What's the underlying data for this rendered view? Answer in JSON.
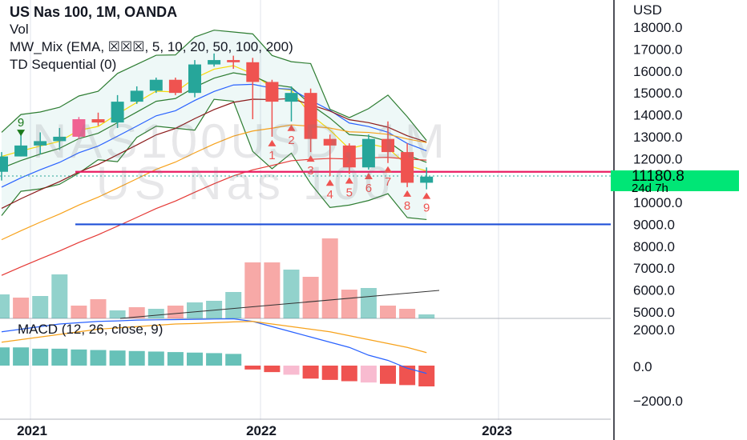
{
  "legend": {
    "title": "US Nas 100, 1M, OANDA",
    "vol": "Vol",
    "mw_mix": "MW_Mix (EMA, ☒☒☒, 5, 10, 20, 50, 100, 200)",
    "td": "TD Sequential (0)"
  },
  "macd_label": "MACD (12, 26, close, 9)",
  "watermark": {
    "line1": "NAS100USD, 1M",
    "line2": "US Nas 100"
  },
  "price_tag": {
    "price": "11180.8",
    "countdown": "24d 7h",
    "color": "#00e676"
  },
  "colors": {
    "up": "#26a69a",
    "down": "#ef5350",
    "bb": "#2e7d32",
    "ema_yellow": "#f5d90a",
    "ema_orange": "#f7a21b",
    "ema_red": "#e53935",
    "ema_darkred": "#8b1a1a",
    "ema_blue": "#2962ff",
    "level_red": "#e91e63",
    "level_blue": "#1e4fd8"
  },
  "chart_data": {
    "type": "candlestick",
    "y_axis": {
      "unit": "USD",
      "ticks": [
        "18000.0",
        "17000.0",
        "16000.0",
        "15000.0",
        "14000.0",
        "13000.0",
        "12000.0",
        "11000.0",
        "10000.0",
        "9000.0",
        "8000.0",
        "7000.0",
        "6000.0",
        "5000.0"
      ],
      "range": [
        4700,
        18300
      ]
    },
    "macd_axis": {
      "ticks": [
        "2000.0",
        "0.0",
        "−2000.0"
      ]
    },
    "x_axis": {
      "ticks": [
        "2021",
        "2022",
        "2023"
      ]
    },
    "candles": [
      {
        "o": 11400,
        "h": 12300,
        "l": 11000,
        "c": 12100
      },
      {
        "o": 12100,
        "h": 13100,
        "l": 12100,
        "c": 12600,
        "td": "9",
        "td_color": "green"
      },
      {
        "o": 12600,
        "h": 13200,
        "l": 12200,
        "c": 12800
      },
      {
        "o": 12800,
        "h": 13400,
        "l": 12400,
        "c": 13000
      },
      {
        "o": 13000,
        "h": 13900,
        "l": 12900,
        "c": 13800,
        "body": "pink"
      },
      {
        "o": 13800,
        "h": 14100,
        "l": 13500,
        "c": 13650
      },
      {
        "o": 13650,
        "h": 14900,
        "l": 13400,
        "c": 14600
      },
      {
        "o": 14600,
        "h": 15300,
        "l": 14500,
        "c": 15100
      },
      {
        "o": 15100,
        "h": 15700,
        "l": 15000,
        "c": 15600
      },
      {
        "o": 15600,
        "h": 15700,
        "l": 14900,
        "c": 15000
      },
      {
        "o": 15000,
        "h": 16500,
        "l": 14800,
        "c": 16300
      },
      {
        "o": 16300,
        "h": 16800,
        "l": 16200,
        "c": 16500
      },
      {
        "o": 16500,
        "h": 16700,
        "l": 16100,
        "c": 16400
      },
      {
        "o": 16400,
        "h": 16600,
        "l": 13800,
        "c": 15500
      },
      {
        "o": 15500,
        "h": 15600,
        "l": 13000,
        "c": 14600,
        "td": "1",
        "td_color": "red"
      },
      {
        "o": 14600,
        "h": 15300,
        "l": 13700,
        "c": 15000,
        "td": "2",
        "td_color": "red"
      },
      {
        "o": 15000,
        "h": 15200,
        "l": 12300,
        "c": 12900,
        "td": "3",
        "td_color": "red"
      },
      {
        "o": 12900,
        "h": 13100,
        "l": 11200,
        "c": 12600,
        "td": "4",
        "td_color": "red"
      },
      {
        "o": 12600,
        "h": 12700,
        "l": 11300,
        "c": 11600,
        "td": "5",
        "td_color": "red"
      },
      {
        "o": 11600,
        "h": 13100,
        "l": 11500,
        "c": 12900,
        "td": "6",
        "td_color": "red"
      },
      {
        "o": 12900,
        "h": 13700,
        "l": 11800,
        "c": 12300,
        "td": "7",
        "td_color": "red"
      },
      {
        "o": 12300,
        "h": 12700,
        "l": 10700,
        "c": 10900,
        "td": "8",
        "td_color": "red"
      },
      {
        "o": 10900,
        "h": 11600,
        "l": 10600,
        "c": 11180,
        "td": "9",
        "td_color": "red"
      }
    ],
    "levels": [
      {
        "value": 11400,
        "color": "red"
      },
      {
        "value": 9000,
        "color": "blue"
      }
    ],
    "volume": [
      {
        "v": 0.3,
        "up": true
      },
      {
        "v": 0.26,
        "up": false
      },
      {
        "v": 0.28,
        "up": true
      },
      {
        "v": 0.55,
        "up": true
      },
      {
        "v": 0.16,
        "up": false
      },
      {
        "v": 0.24,
        "up": false
      },
      {
        "v": 0.1,
        "up": true
      },
      {
        "v": 0.14,
        "up": false
      },
      {
        "v": 0.12,
        "up": true
      },
      {
        "v": 0.16,
        "up": false
      },
      {
        "v": 0.2,
        "up": true
      },
      {
        "v": 0.22,
        "up": true
      },
      {
        "v": 0.33,
        "up": true
      },
      {
        "v": 0.7,
        "up": false
      },
      {
        "v": 0.7,
        "up": false
      },
      {
        "v": 0.61,
        "up": true
      },
      {
        "v": 0.52,
        "up": false
      },
      {
        "v": 1.0,
        "up": false
      },
      {
        "v": 0.36,
        "up": false
      },
      {
        "v": 0.38,
        "up": true
      },
      {
        "v": 0.16,
        "up": false
      },
      {
        "v": 0.12,
        "up": false
      },
      {
        "v": 0.05,
        "up": true
      }
    ],
    "macd_hist": [
      700,
      700,
      650,
      650,
      620,
      600,
      580,
      560,
      540,
      520,
      500,
      480,
      450,
      -150,
      -250,
      -350,
      -500,
      -550,
      -600,
      -650,
      -700,
      -750,
      -800
    ],
    "macd_line": [
      1300,
      1400,
      1500,
      1600,
      1650,
      1700,
      1720,
      1750,
      1760,
      1770,
      1780,
      1790,
      1800,
      1700,
      1500,
      1300,
      1100,
      900,
      700,
      400,
      200,
      -100,
      -300
    ],
    "signal_line": [
      900,
      1000,
      1100,
      1200,
      1300,
      1400,
      1450,
      1500,
      1550,
      1600,
      1620,
      1650,
      1680,
      1700,
      1600,
      1500,
      1400,
      1300,
      1150,
      1000,
      850,
      700,
      500
    ]
  }
}
